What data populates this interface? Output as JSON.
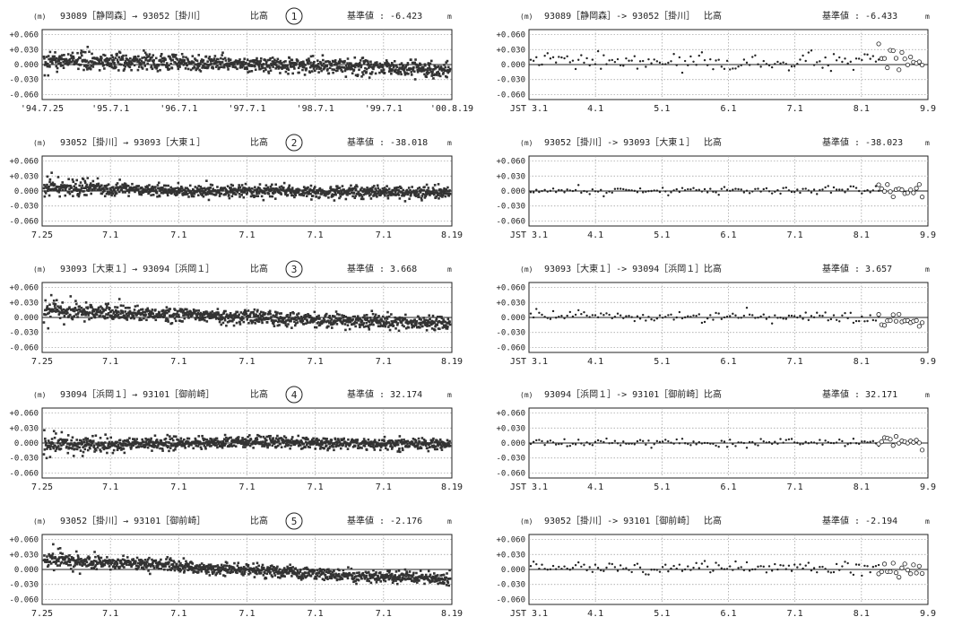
{
  "chart_data": [
    {
      "type": "scatter",
      "panel_number": "1",
      "unit_left": "(m)",
      "route": "93089［静岡森］→ 93052［掛川］",
      "quantity": "比高",
      "reference_label": "基準値 : -6.423",
      "unit_right": "m",
      "yticks": [
        "+0.060",
        "+0.030",
        "0.000",
        "-0.030",
        "-0.060"
      ],
      "ylim": [
        -0.07,
        0.07
      ],
      "xticks": [
        "'94.7.25",
        "'95.7.1",
        "'96.7.1",
        "'97.7.1",
        "'98.7.1",
        "'99.7.1",
        "'00.8.19"
      ],
      "trend": [
        [
          0,
          0.008
        ],
        [
          0.3,
          0.004
        ],
        [
          0.7,
          -0.003
        ],
        [
          1,
          -0.01
        ]
      ],
      "noise": 0.008,
      "early_spread": 0.035,
      "n_points": 1050,
      "grid": true
    },
    {
      "type": "scatter",
      "unit_left": "(m)",
      "route": "93089［静岡森］-> 93052［掛川］",
      "quantity": "比高",
      "reference_label": "基準値 : -6.433",
      "unit_right": "m",
      "yticks": [
        "+0.060",
        "+0.030",
        "0.000",
        "-0.030",
        "-0.060"
      ],
      "ylim": [
        -0.07,
        0.07
      ],
      "xticks": [
        "JST 3.1",
        "4.1",
        "5.1",
        "6.1",
        "7.1",
        "8.1",
        "9.9"
      ],
      "trend": [
        [
          0,
          0.008
        ],
        [
          0.5,
          0.002
        ],
        [
          1,
          0.008
        ]
      ],
      "noise": 0.009,
      "n_points": 125,
      "open_points": 16,
      "grid": true
    },
    {
      "type": "scatter",
      "panel_number": "2",
      "unit_left": "(m)",
      "route": "93052［掛川］→ 93093［大東１］",
      "quantity": "比高",
      "reference_label": "基準値 : -38.018",
      "unit_right": "m",
      "yticks": [
        "+0.060",
        "+0.030",
        "0.000",
        "-0.030",
        "-0.060"
      ],
      "ylim": [
        -0.07,
        0.07
      ],
      "xticks": [
        "7.25",
        "7.1",
        "7.1",
        "7.1",
        "7.1",
        "7.1",
        "8.19"
      ],
      "trend": [
        [
          0,
          0.01
        ],
        [
          0.3,
          0.0
        ],
        [
          1,
          -0.003
        ]
      ],
      "noise": 0.006,
      "early_spread": 0.03,
      "n_points": 1050,
      "grid": true
    },
    {
      "type": "scatter",
      "unit_left": "(m)",
      "route": "93052［掛川］-> 93093［大東１］",
      "quantity": "比高",
      "reference_label": "基準値 : -38.023",
      "unit_right": "m",
      "yticks": [
        "+0.060",
        "+0.030",
        "0.000",
        "-0.030",
        "-0.060"
      ],
      "ylim": [
        -0.07,
        0.07
      ],
      "xticks": [
        "JST 3.1",
        "4.1",
        "5.1",
        "6.1",
        "7.1",
        "8.1",
        "9.9"
      ],
      "trend": [
        [
          0,
          0.0
        ],
        [
          1,
          0.002
        ]
      ],
      "noise": 0.004,
      "n_points": 125,
      "open_points": 16,
      "grid": true
    },
    {
      "type": "scatter",
      "panel_number": "3",
      "unit_left": "(m)",
      "route": "93093［大東１］→ 93094［浜岡１］",
      "quantity": "比高",
      "reference_label": "基準値 : 3.668",
      "unit_right": "m",
      "yticks": [
        "+0.060",
        "+0.030",
        "0.000",
        "-0.030",
        "-0.060"
      ],
      "ylim": [
        -0.07,
        0.07
      ],
      "xticks": [
        "7.25",
        "7.1",
        "7.1",
        "7.1",
        "7.1",
        "7.1",
        "8.19"
      ],
      "trend": [
        [
          0,
          0.015
        ],
        [
          0.3,
          0.006
        ],
        [
          0.7,
          -0.006
        ],
        [
          1,
          -0.012
        ]
      ],
      "noise": 0.007,
      "early_spread": 0.03,
      "n_points": 1050,
      "grid": true
    },
    {
      "type": "scatter",
      "unit_left": "(m)",
      "route": "93093［大東１］-> 93094［浜岡１］",
      "quantity": "比高",
      "reference_label": "基準値 : 3.657",
      "unit_right": "m",
      "yticks": [
        "+0.060",
        "+0.030",
        "0.000",
        "-0.030",
        "-0.060"
      ],
      "ylim": [
        -0.07,
        0.07
      ],
      "xticks": [
        "JST 3.1",
        "4.1",
        "5.1",
        "6.1",
        "7.1",
        "8.1",
        "9.9"
      ],
      "trend": [
        [
          0,
          0.004
        ],
        [
          1,
          0.0
        ]
      ],
      "noise": 0.006,
      "n_points": 125,
      "open_points": 16,
      "grid": true
    },
    {
      "type": "scatter",
      "panel_number": "4",
      "unit_left": "(m)",
      "route": "93094［浜岡１］→ 93101［御前崎］",
      "quantity": "比高",
      "reference_label": "基準値 : 32.174",
      "unit_right": "m",
      "yticks": [
        "+0.060",
        "+0.030",
        "0.000",
        "-0.030",
        "-0.060"
      ],
      "ylim": [
        -0.07,
        0.07
      ],
      "xticks": [
        "7.25",
        "7.1",
        "7.1",
        "7.1",
        "7.1",
        "7.1",
        "8.19"
      ],
      "trend": [
        [
          0,
          -0.004
        ],
        [
          0.5,
          0.002
        ],
        [
          1,
          -0.004
        ]
      ],
      "noise": 0.006,
      "early_spread": 0.035,
      "n_points": 1050,
      "grid": true
    },
    {
      "type": "scatter",
      "unit_left": "(m)",
      "route": "93094［浜岡１］-> 93101［御前崎］",
      "quantity": "比高",
      "reference_label": "基準値 : 32.171",
      "unit_right": "m",
      "yticks": [
        "+0.060",
        "+0.030",
        "0.000",
        "-0.030",
        "-0.060"
      ],
      "ylim": [
        -0.07,
        0.07
      ],
      "xticks": [
        "JST 3.1",
        "4.1",
        "5.1",
        "6.1",
        "7.1",
        "8.1",
        "9.9"
      ],
      "trend": [
        [
          0,
          0.0
        ],
        [
          1,
          0.001
        ]
      ],
      "noise": 0.004,
      "n_points": 125,
      "open_points": 16,
      "grid": true
    },
    {
      "type": "scatter",
      "panel_number": "5",
      "unit_left": "(m)",
      "route": "93052［掛川］→ 93101［御前崎］",
      "quantity": "比高",
      "reference_label": "基準値 : -2.176",
      "unit_right": "m",
      "yticks": [
        "+0.060",
        "+0.030",
        "0.000",
        "-0.030",
        "-0.060"
      ],
      "ylim": [
        -0.07,
        0.07
      ],
      "xticks": [
        "7.25",
        "7.1",
        "7.1",
        "7.1",
        "7.1",
        "7.1",
        "8.19"
      ],
      "trend": [
        [
          0,
          0.02
        ],
        [
          0.3,
          0.008
        ],
        [
          0.7,
          -0.01
        ],
        [
          1,
          -0.02
        ]
      ],
      "noise": 0.006,
      "early_spread": 0.035,
      "n_points": 1050,
      "grid": true
    },
    {
      "type": "scatter",
      "unit_left": "(m)",
      "route": "93052［掛川］-> 93101［御前崎］",
      "quantity": "比高",
      "reference_label": "基準値 : -2.194",
      "unit_right": "m",
      "yticks": [
        "+0.060",
        "+0.030",
        "0.000",
        "-0.030",
        "-0.060"
      ],
      "ylim": [
        -0.07,
        0.07
      ],
      "xticks": [
        "JST 3.1",
        "4.1",
        "5.1",
        "6.1",
        "7.1",
        "8.1",
        "9.9"
      ],
      "trend": [
        [
          0,
          0.006
        ],
        [
          1,
          0.0
        ]
      ],
      "noise": 0.006,
      "n_points": 125,
      "open_points": 16,
      "grid": true
    }
  ]
}
